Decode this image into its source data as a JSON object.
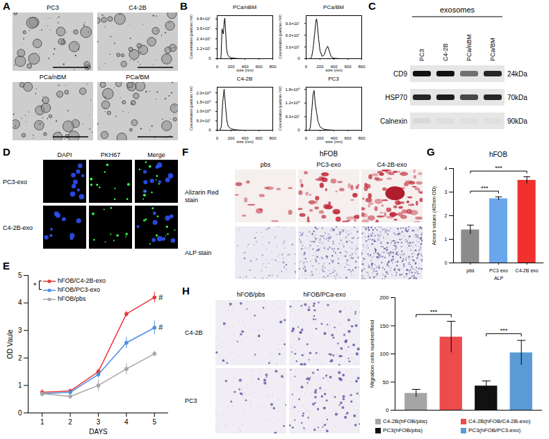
{
  "figure": {
    "A": {
      "letter": "A",
      "images": [
        "PC3",
        "C4-2B",
        "PCa/nBM",
        "PCa/BM"
      ]
    },
    "C": {
      "letter": "C",
      "header": "exosomes",
      "lanes": [
        "PC3",
        "C4-2B",
        "PCa/nBM",
        "PCa/BM"
      ],
      "blots": [
        {
          "protein": "CD9",
          "size": "24kDa"
        },
        {
          "protein": "HSP70",
          "size": "70kDa"
        },
        {
          "protein": "Calnexin",
          "size": "90kDa"
        }
      ]
    },
    "D": {
      "letter": "D",
      "columns": [
        "DAPI",
        "PKH67",
        "Merge"
      ],
      "rows": [
        "PC3-exo",
        "C4-2B-exo"
      ]
    },
    "F": {
      "letter": "F",
      "title": "hFOB",
      "columns": [
        "pbs",
        "PC3-exo",
        "C4-2B-exo"
      ],
      "rows": [
        "Alizarin Red stain",
        "ALP stain"
      ]
    },
    "H": {
      "letter": "H",
      "columns": [
        "hFOB/pbs",
        "hFOB/PCa-exo"
      ],
      "rows": [
        "C4-2B",
        "PC3"
      ]
    }
  },
  "chart_data": [
    {
      "panel": "B",
      "type": "line",
      "title": "PCa/nBM",
      "xlabel": "size (nm)",
      "ylabel": "Concentration (particles / ml)",
      "color": "#000000",
      "xlim": [
        0,
        800
      ],
      "xticks": [
        0,
        200,
        400,
        600,
        800
      ],
      "ylim": [
        0,
        52000000
      ],
      "yticks": [
        0,
        {
          "value": 12000000,
          "label": "1.2×10⁷"
        },
        {
          "value": 24000000,
          "label": "2.4×10⁷"
        },
        {
          "value": 36000000,
          "label": "3.6×10⁷"
        },
        {
          "value": 48000000,
          "label": "4.8×10⁷"
        }
      ],
      "x": [
        0,
        40,
        55,
        70,
        80,
        90,
        100,
        110,
        120,
        135,
        150,
        175,
        200,
        250,
        300,
        400,
        600,
        800
      ],
      "values": [
        0,
        0,
        1000000,
        36000000,
        32000000,
        30000000,
        44000000,
        49000000,
        35000000,
        12000000,
        5000000,
        2000000,
        1000000,
        500000,
        200000,
        0,
        0,
        0
      ]
    },
    {
      "panel": "B",
      "type": "line",
      "title": "PCa/BM",
      "xlabel": "size (nm)",
      "ylabel": "Concentration (particles / ml)",
      "color": "#000000",
      "xlim": [
        0,
        800
      ],
      "xticks": [
        0,
        200,
        400,
        600,
        800
      ],
      "ylim": [
        0,
        110000000
      ],
      "yticks": [
        0,
        {
          "value": 30000000,
          "label": "3.0×10⁷"
        },
        {
          "value": 60000000,
          "label": "6.0×10⁷"
        },
        {
          "value": 90000000,
          "label": "9.0×10⁷"
        }
      ],
      "x": [
        0,
        60,
        80,
        100,
        120,
        140,
        150,
        160,
        180,
        200,
        230,
        260,
        290,
        310,
        330,
        360,
        400,
        500,
        600,
        800
      ],
      "values": [
        0,
        0,
        5000000,
        25000000,
        60000000,
        95000000,
        102000000,
        90000000,
        50000000,
        20000000,
        6000000,
        10000000,
        26000000,
        32000000,
        22000000,
        5000000,
        1000000,
        0,
        0,
        0
      ]
    },
    {
      "panel": "B",
      "type": "line",
      "title": "C4-2B",
      "xlabel": "size (nm)",
      "ylabel": "Concentration (particles / ml)",
      "color": "#000000",
      "xlim": [
        0,
        800
      ],
      "xticks": [
        0,
        200,
        400,
        600,
        800
      ],
      "ylim": [
        0,
        230000000
      ],
      "yticks": [
        0,
        {
          "value": 50000000,
          "label": "5.0×10⁷"
        },
        {
          "value": 100000000,
          "label": "1.0×10⁸"
        },
        {
          "value": 150000000,
          "label": "1.5×10⁸"
        },
        {
          "value": 200000000,
          "label": "2.0×10⁸"
        }
      ],
      "x": [
        0,
        40,
        60,
        80,
        100,
        120,
        140,
        160,
        200,
        250,
        300,
        400,
        600,
        800
      ],
      "values": [
        0,
        0,
        20000000,
        150000000,
        220000000,
        130000000,
        50000000,
        20000000,
        8000000,
        3000000,
        1000000,
        0,
        0,
        0
      ]
    },
    {
      "panel": "B",
      "type": "line",
      "title": "PC3",
      "xlabel": "size (nm)",
      "ylabel": "Concentration (particles / ml)",
      "color": "#000000",
      "xlim": [
        0,
        800
      ],
      "xticks": [
        0,
        200,
        400,
        600,
        800
      ],
      "ylim": [
        0,
        190000000
      ],
      "yticks": [
        0,
        {
          "value": 60000000,
          "label": "6.0×10⁷"
        },
        {
          "value": 120000000,
          "label": "1.2×10⁸"
        },
        {
          "value": 180000000,
          "label": "1.8×10⁸"
        }
      ],
      "x": [
        0,
        40,
        60,
        80,
        100,
        115,
        130,
        150,
        170,
        200,
        250,
        300,
        400,
        600,
        800
      ],
      "values": [
        0,
        0,
        10000000,
        80000000,
        160000000,
        175000000,
        120000000,
        80000000,
        40000000,
        15000000,
        5000000,
        2000000,
        0,
        0,
        0
      ]
    },
    {
      "panel": "E",
      "type": "line",
      "x": [
        1,
        2,
        3,
        4,
        5
      ],
      "xlabel": "DAYS",
      "ylabel": "OD Vaule",
      "xlim": [
        0.5,
        5.5
      ],
      "xticks": [
        1,
        2,
        3,
        4,
        5
      ],
      "ylim": [
        0,
        5
      ],
      "yticks": [
        0,
        1,
        2,
        3,
        4,
        5
      ],
      "legend": "top-left",
      "marker": "circle",
      "series": [
        {
          "name": "hFOB/C4-2B-exo",
          "color": "#e8383d",
          "values": [
            0.75,
            0.8,
            1.5,
            3.6,
            4.2
          ],
          "errors": [
            0.1,
            0.05,
            0.1,
            0.1,
            0.2
          ]
        },
        {
          "name": "hFOB/PC3-exo",
          "color": "#4e8fe0",
          "values": [
            0.7,
            0.75,
            1.4,
            2.55,
            3.1
          ],
          "errors": [
            0.1,
            0.05,
            0.12,
            0.2,
            0.25
          ]
        },
        {
          "name": "hFOB/pbs",
          "color": "#a6a6a6",
          "values": [
            0.7,
            0.6,
            1.0,
            1.6,
            2.15
          ],
          "errors": [
            0.1,
            0.06,
            0.2,
            0.2,
            0.1
          ]
        }
      ],
      "annotations": [
        {
          "text": "*",
          "series": [
            "hFOB/C4-2B-exo",
            "hFOB/PC3-exo"
          ]
        },
        {
          "text": "#",
          "series": "hFOB/C4-2B-exo",
          "x": 5
        },
        {
          "text": "#",
          "series": "hFOB/PC3-exo",
          "x": 5
        }
      ]
    },
    {
      "panel": "G",
      "type": "bar",
      "title": "hFOB",
      "xlabel": "ALP",
      "ylabel": "Absorb values (405nm OD)",
      "categories": [
        "pbs",
        "PC3 exo",
        "C4-2B exo"
      ],
      "values": [
        1.4,
        2.72,
        3.5
      ],
      "errors": [
        0.2,
        0.08,
        0.15
      ],
      "colors": [
        "#8c8c8c",
        "#6aa6ec",
        "#f0312e"
      ],
      "ylim": [
        0,
        4
      ],
      "yticks": [
        0,
        1,
        2,
        3,
        4
      ],
      "significance": [
        {
          "from": "pbs",
          "to": "PC3 exo",
          "label": "***"
        },
        {
          "from": "pbs",
          "to": "C4-2B exo",
          "label": "***"
        }
      ]
    },
    {
      "panel": "H",
      "type": "bar",
      "ylabel": "Migration cells number/field",
      "categories": [
        "C4-2B(hFOB/pbs)",
        "C4-2B(hFOB/C4-2B-exo)",
        "PC3(hFOB/pbs)",
        "PC3(hFOB/PC3-exo)"
      ],
      "values": [
        30,
        130,
        43,
        102
      ],
      "errors": [
        7,
        28,
        9,
        22
      ],
      "colors": [
        "#a6a6a6",
        "#ee4c4c",
        "#111111",
        "#5b9bd5"
      ],
      "ylim": [
        0,
        200
      ],
      "yticks": [
        0,
        50,
        100,
        150,
        200
      ],
      "tick_labels": "y",
      "legend": "bottom",
      "significance": [
        {
          "from": "C4-2B(hFOB/pbs)",
          "to": "C4-2B(hFOB/C4-2B-exo)",
          "label": "***"
        },
        {
          "from": "PC3(hFOB/pbs)",
          "to": "PC3(hFOB/PC3-exo)",
          "label": "***"
        }
      ]
    }
  ]
}
